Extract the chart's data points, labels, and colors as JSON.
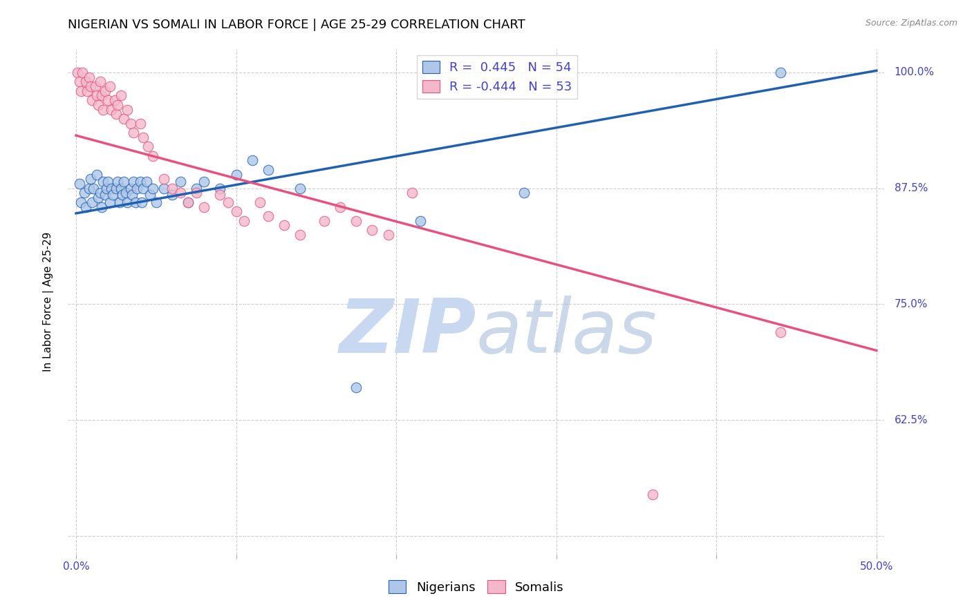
{
  "title": "NIGERIAN VS SOMALI IN LABOR FORCE | AGE 25-29 CORRELATION CHART",
  "source": "Source: ZipAtlas.com",
  "ylabel": "In Labor Force | Age 25-29",
  "xlim": [
    -0.005,
    0.505
  ],
  "ylim": [
    0.48,
    1.025
  ],
  "xticks": [
    0.0,
    0.1,
    0.2,
    0.3,
    0.4,
    0.5
  ],
  "xticklabels": [
    "0.0%",
    "",
    "",
    "",
    "",
    "50.0%"
  ],
  "yticks": [
    0.5,
    0.625,
    0.75,
    0.875,
    1.0
  ],
  "yticklabels": [
    "",
    "62.5%",
    "75.0%",
    "87.5%",
    "100.0%"
  ],
  "nigerian_color": "#aec6e8",
  "somali_color": "#f5b8cb",
  "trend_nigerian_color": "#2060b0",
  "trend_somali_color": "#e85080",
  "grid_color": "#cccccc",
  "legend_r_nigerian": "R =  0.445",
  "legend_n_nigerian": "N = 54",
  "legend_r_somali": "R = -0.444",
  "legend_n_somali": "N = 53",
  "legend_fontsize": 13,
  "title_fontsize": 13,
  "axis_label_fontsize": 11,
  "tick_fontsize": 11,
  "tick_color": "#4040cc",
  "nigerian_trend_x": [
    0.0,
    0.5
  ],
  "nigerian_trend_y": [
    0.848,
    1.002
  ],
  "somali_trend_x": [
    0.0,
    0.5
  ],
  "somali_trend_y": [
    0.932,
    0.7
  ],
  "nigerian_x": [
    0.002,
    0.003,
    0.005,
    0.006,
    0.008,
    0.009,
    0.01,
    0.011,
    0.013,
    0.014,
    0.015,
    0.016,
    0.017,
    0.018,
    0.019,
    0.02,
    0.021,
    0.022,
    0.023,
    0.025,
    0.026,
    0.027,
    0.028,
    0.029,
    0.03,
    0.031,
    0.032,
    0.034,
    0.035,
    0.036,
    0.037,
    0.038,
    0.04,
    0.041,
    0.042,
    0.044,
    0.046,
    0.048,
    0.05,
    0.055,
    0.06,
    0.065,
    0.07,
    0.075,
    0.08,
    0.09,
    0.1,
    0.11,
    0.12,
    0.14,
    0.175,
    0.215,
    0.28,
    0.44
  ],
  "nigerian_y": [
    0.88,
    0.86,
    0.87,
    0.855,
    0.875,
    0.885,
    0.86,
    0.875,
    0.89,
    0.865,
    0.87,
    0.855,
    0.882,
    0.868,
    0.875,
    0.882,
    0.86,
    0.875,
    0.868,
    0.875,
    0.882,
    0.86,
    0.875,
    0.868,
    0.882,
    0.87,
    0.86,
    0.875,
    0.868,
    0.882,
    0.86,
    0.875,
    0.882,
    0.86,
    0.875,
    0.882,
    0.868,
    0.875,
    0.86,
    0.875,
    0.868,
    0.882,
    0.86,
    0.875,
    0.882,
    0.875,
    0.89,
    0.905,
    0.895,
    0.875,
    0.66,
    0.84,
    0.87,
    1.0
  ],
  "somali_x": [
    0.001,
    0.002,
    0.003,
    0.004,
    0.006,
    0.007,
    0.008,
    0.009,
    0.01,
    0.012,
    0.013,
    0.014,
    0.015,
    0.016,
    0.017,
    0.018,
    0.02,
    0.021,
    0.022,
    0.024,
    0.025,
    0.026,
    0.028,
    0.03,
    0.032,
    0.034,
    0.036,
    0.04,
    0.042,
    0.045,
    0.048,
    0.055,
    0.06,
    0.065,
    0.07,
    0.075,
    0.08,
    0.09,
    0.095,
    0.1,
    0.105,
    0.115,
    0.12,
    0.13,
    0.14,
    0.155,
    0.165,
    0.175,
    0.185,
    0.195,
    0.21,
    0.36,
    0.44
  ],
  "somali_y": [
    1.0,
    0.99,
    0.98,
    1.0,
    0.99,
    0.98,
    0.995,
    0.985,
    0.97,
    0.985,
    0.975,
    0.965,
    0.99,
    0.975,
    0.96,
    0.98,
    0.97,
    0.985,
    0.96,
    0.97,
    0.955,
    0.965,
    0.975,
    0.95,
    0.96,
    0.945,
    0.935,
    0.945,
    0.93,
    0.92,
    0.91,
    0.885,
    0.875,
    0.87,
    0.86,
    0.87,
    0.855,
    0.868,
    0.86,
    0.85,
    0.84,
    0.86,
    0.845,
    0.835,
    0.825,
    0.84,
    0.855,
    0.84,
    0.83,
    0.825,
    0.87,
    0.545,
    0.72
  ]
}
